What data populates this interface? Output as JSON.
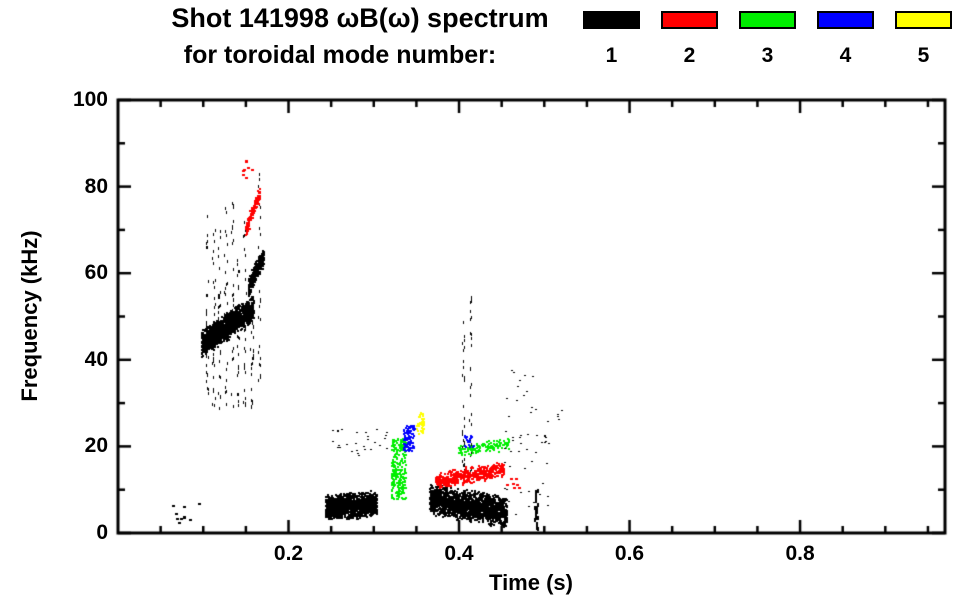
{
  "chart_data": {
    "type": "scatter",
    "title": "Shot 141998 ωB(ω) spectrum for toroidal mode number: 1 2 3 4 5",
    "title_line1": "Shot 141998 ωB(ω) spectrum",
    "title_line2": "for toroidal mode number:",
    "xlabel": "Time (s)",
    "ylabel": "Frequency (kHz)",
    "xlim": [
      0,
      0.97
    ],
    "ylim": [
      0,
      100
    ],
    "grid": false,
    "legend_position": "top-right",
    "xticks": [
      {
        "value": 0.2,
        "label": "0.2"
      },
      {
        "value": 0.4,
        "label": "0.4"
      },
      {
        "value": 0.6,
        "label": "0.6"
      },
      {
        "value": 0.8,
        "label": "0.8"
      }
    ],
    "yticks": [
      {
        "value": 0,
        "label": "0"
      },
      {
        "value": 20,
        "label": "20"
      },
      {
        "value": 40,
        "label": "40"
      },
      {
        "value": 60,
        "label": "60"
      },
      {
        "value": 80,
        "label": "80"
      },
      {
        "value": 100,
        "label": "100"
      }
    ],
    "minor_tick_step_x": 0.05,
    "minor_tick_step_y": 10,
    "legend": [
      {
        "label": "1",
        "color": "#000000"
      },
      {
        "label": "2",
        "color": "#ff0000"
      },
      {
        "label": "3",
        "color": "#00ee00"
      },
      {
        "label": "4",
        "color": "#0000ff"
      },
      {
        "label": "5",
        "color": "#ffff00"
      }
    ],
    "clusters": [
      {
        "name": "n1-early-specks",
        "color": "#000000",
        "mode": "sparse",
        "t": [
          0.055,
          0.095
        ],
        "f": [
          2,
          7
        ],
        "n": 10,
        "size": 2
      },
      {
        "name": "n1-main-ridge",
        "color": "#000000",
        "mode": "trend",
        "t": [
          0.097,
          0.158
        ],
        "f": [
          44,
          52
        ],
        "spread": 3.5,
        "n": 1300,
        "size": 2
      },
      {
        "name": "n1-ridge-top",
        "color": "#000000",
        "mode": "trend",
        "t": [
          0.152,
          0.17
        ],
        "f": [
          57,
          64
        ],
        "spread": 2.5,
        "n": 300,
        "size": 2
      },
      {
        "name": "n1-vert-streaks",
        "color": "#000000",
        "mode": "vstreaks",
        "t": [
          0.1,
          0.168
        ],
        "f": [
          29,
          91
        ],
        "streaks": 9,
        "n": 230,
        "size": 1
      },
      {
        "name": "n2-high-band",
        "color": "#ff0000",
        "mode": "trend",
        "t": [
          0.149,
          0.166
        ],
        "f": [
          70,
          79
        ],
        "spread": 2.2,
        "n": 110,
        "size": 2
      },
      {
        "name": "n2-high-specks",
        "color": "#ff0000",
        "mode": "sparse",
        "t": [
          0.144,
          0.156
        ],
        "f": [
          82,
          88
        ],
        "n": 8,
        "size": 2
      },
      {
        "name": "n1-blob-mid",
        "color": "#000000",
        "mode": "trend",
        "t": [
          0.243,
          0.303
        ],
        "f": [
          6,
          7
        ],
        "spread": 3.2,
        "n": 1200,
        "size": 2
      },
      {
        "name": "n1-mid-specks",
        "color": "#000000",
        "mode": "sparse",
        "t": [
          0.25,
          0.315
        ],
        "f": [
          18,
          24
        ],
        "n": 28,
        "size": 1
      },
      {
        "name": "n3-column",
        "color": "#00ee00",
        "mode": "band",
        "t": [
          0.32,
          0.337
        ],
        "f": [
          8,
          22
        ],
        "n": 230,
        "size": 2
      },
      {
        "name": "n4-blob",
        "color": "#0000ff",
        "mode": "band",
        "t": [
          0.334,
          0.347
        ],
        "f": [
          19,
          25
        ],
        "n": 100,
        "size": 2
      },
      {
        "name": "n5-specks",
        "color": "#ffff00",
        "mode": "band",
        "t": [
          0.349,
          0.358
        ],
        "f": [
          23,
          28
        ],
        "n": 45,
        "size": 2
      },
      {
        "name": "n1-blob-late",
        "color": "#000000",
        "mode": "trend",
        "t": [
          0.365,
          0.455
        ],
        "f": [
          8,
          5
        ],
        "spread": 3.8,
        "n": 1700,
        "size": 2
      },
      {
        "name": "n1-late-streak",
        "color": "#000000",
        "mode": "vstreaks",
        "t": [
          0.402,
          0.418
        ],
        "f": [
          13,
          57
        ],
        "streaks": 2,
        "n": 55,
        "size": 1
      },
      {
        "name": "n2-band",
        "color": "#ff0000",
        "mode": "trend",
        "t": [
          0.372,
          0.452
        ],
        "f": [
          12,
          15
        ],
        "spread": 2.2,
        "n": 430,
        "size": 2
      },
      {
        "name": "n3-band",
        "color": "#00ee00",
        "mode": "trend",
        "t": [
          0.398,
          0.458
        ],
        "f": [
          19,
          21
        ],
        "spread": 1.6,
        "n": 130,
        "size": 2
      },
      {
        "name": "n4-speck",
        "color": "#0000ff",
        "mode": "band",
        "t": [
          0.405,
          0.416
        ],
        "f": [
          20,
          23
        ],
        "n": 20,
        "size": 2
      },
      {
        "name": "n1-tail-sparse",
        "color": "#000000",
        "mode": "sparse",
        "t": [
          0.452,
          0.505
        ],
        "f": [
          3,
          38
        ],
        "n": 55,
        "size": 1
      },
      {
        "name": "n1-tail-line",
        "color": "#000000",
        "mode": "vstreaks",
        "t": [
          0.488,
          0.494
        ],
        "f": [
          1,
          13
        ],
        "streaks": 1,
        "n": 22,
        "size": 2
      },
      {
        "name": "n2-tail-specks",
        "color": "#ff0000",
        "mode": "sparse",
        "t": [
          0.455,
          0.475
        ],
        "f": [
          10,
          13
        ],
        "n": 7,
        "size": 2
      },
      {
        "name": "n1-lone-specks",
        "color": "#000000",
        "mode": "sparse",
        "t": [
          0.512,
          0.525
        ],
        "f": [
          26,
          30
        ],
        "n": 5,
        "size": 1
      }
    ]
  }
}
